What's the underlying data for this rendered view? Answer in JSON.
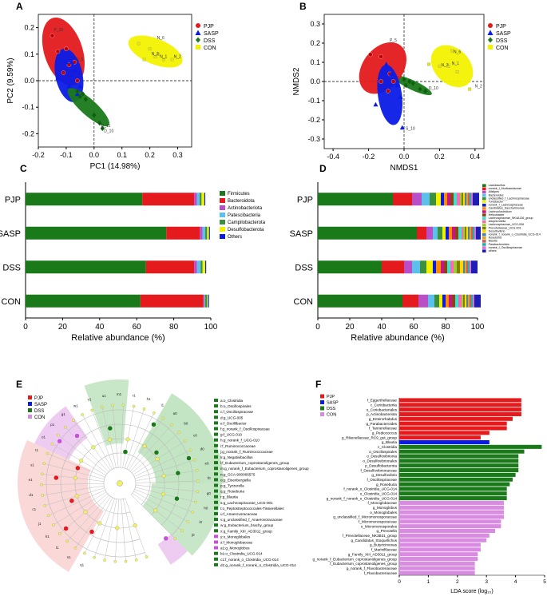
{
  "colors": {
    "PJP": "#e41a1c",
    "SASP": "#0a1be6",
    "DSS": "#1a7a1a",
    "CON": "#f2f200",
    "CONlda": "#d88be0"
  },
  "chart_data": [
    {
      "panel": "A",
      "type": "scatter",
      "title": "",
      "xlabel": "PC1 (14.98%)",
      "ylabel": "PC2 (9.59%)",
      "xlim": [
        -0.2,
        0.35
      ],
      "ylim": [
        -0.25,
        0.25
      ],
      "xticks": [
        "-0.2",
        "-0.1",
        "0.0",
        "0.1",
        "0.2",
        "0.3"
      ],
      "yticks": [
        "-0.2",
        "-0.1",
        "0.0",
        "0.1",
        "0.2"
      ],
      "legend": [
        "PJP",
        "SASP",
        "DSS",
        "CON"
      ],
      "labels": [
        {
          "t": "P_10",
          "x": -0.15,
          "y": 0.18
        },
        {
          "t": "S_5",
          "x": -0.07,
          "y": 0.07
        },
        {
          "t": "D_11",
          "x": 0.02,
          "y": -0.18
        },
        {
          "t": "D_10",
          "x": 0.03,
          "y": -0.2
        },
        {
          "t": "N_6",
          "x": 0.22,
          "y": 0.15
        },
        {
          "t": "N_3",
          "x": 0.2,
          "y": 0.09
        },
        {
          "t": "N_1",
          "x": 0.23,
          "y": 0.08
        },
        {
          "t": "N_2",
          "x": 0.28,
          "y": 0.08
        }
      ],
      "series": [
        {
          "name": "PJP",
          "points": [
            [
              -0.15,
              0.17
            ],
            [
              -0.13,
              0.11
            ],
            [
              -0.1,
              0.12
            ],
            [
              -0.09,
              0.06
            ],
            [
              -0.11,
              0.03
            ],
            [
              -0.07,
              0.07
            ],
            [
              -0.06,
              0.0
            ]
          ]
        },
        {
          "name": "SASP",
          "points": [
            [
              -0.13,
              0.01
            ],
            [
              -0.1,
              0.07
            ],
            [
              -0.08,
              0.07
            ],
            [
              -0.07,
              0.04
            ],
            [
              -0.09,
              -0.02
            ],
            [
              -0.06,
              -0.05
            ],
            [
              -0.05,
              -0.02
            ]
          ]
        },
        {
          "name": "DSS",
          "points": [
            [
              -0.06,
              -0.04
            ],
            [
              -0.04,
              -0.05
            ],
            [
              -0.03,
              -0.07
            ],
            [
              0.0,
              -0.13
            ],
            [
              0.02,
              -0.16
            ],
            [
              0.03,
              -0.18
            ],
            [
              -0.05,
              -0.06
            ]
          ]
        },
        {
          "name": "CON",
          "points": [
            [
              0.16,
              0.14
            ],
            [
              0.2,
              0.12
            ],
            [
              0.22,
              0.09
            ],
            [
              0.23,
              0.1
            ],
            [
              0.25,
              0.08
            ],
            [
              0.28,
              0.08
            ],
            [
              0.18,
              0.08
            ]
          ]
        }
      ]
    },
    {
      "panel": "B",
      "type": "scatter",
      "title": "",
      "xlabel": "NMDS1",
      "ylabel": "NMDS2",
      "xlim": [
        -0.45,
        0.45
      ],
      "ylim": [
        -0.35,
        0.35
      ],
      "xticks": [
        "-0.4",
        "-0.2",
        "0.0",
        "0.2",
        "0.4"
      ],
      "yticks": [
        "-0.3",
        "-0.2",
        "-0.1",
        "0.0",
        "0.1",
        "0.2",
        "0.3"
      ],
      "legend": [
        "PJP",
        "SASP",
        "DSS",
        "CON"
      ],
      "labels": [
        {
          "t": "P_5",
          "x": -0.09,
          "y": 0.2
        },
        {
          "t": "N_6",
          "x": 0.27,
          "y": 0.14
        },
        {
          "t": "N_3",
          "x": 0.2,
          "y": 0.07
        },
        {
          "t": "N_1",
          "x": 0.26,
          "y": 0.08
        },
        {
          "t": "N_2",
          "x": 0.39,
          "y": -0.04
        },
        {
          "t": "D_10",
          "x": 0.13,
          "y": -0.05
        },
        {
          "t": "S_10",
          "x": 0.0,
          "y": -0.26
        }
      ],
      "series": [
        {
          "name": "PJP",
          "points": [
            [
              -0.19,
              0.14
            ],
            [
              -0.13,
              0.13
            ],
            [
              -0.08,
              0.04
            ],
            [
              -0.06,
              0.0
            ],
            [
              -0.13,
              0.0
            ],
            [
              -0.09,
              -0.05
            ]
          ]
        },
        {
          "name": "SASP",
          "points": [
            [
              -0.1,
              0.09
            ],
            [
              -0.07,
              0.04
            ],
            [
              -0.04,
              -0.02
            ],
            [
              -0.16,
              -0.12
            ],
            [
              -0.01,
              -0.24
            ],
            [
              -0.02,
              -0.08
            ]
          ]
        },
        {
          "name": "DSS",
          "points": [
            [
              0.0,
              0.01
            ],
            [
              0.03,
              0.0
            ],
            [
              0.05,
              -0.01
            ],
            [
              0.09,
              -0.04
            ],
            [
              0.12,
              -0.05
            ],
            [
              0.01,
              -0.02
            ]
          ]
        },
        {
          "name": "CON",
          "points": [
            [
              0.14,
              0.09
            ],
            [
              0.2,
              0.08
            ],
            [
              0.25,
              0.08
            ],
            [
              0.27,
              0.16
            ],
            [
              0.3,
              0.05
            ],
            [
              0.37,
              -0.04
            ]
          ]
        }
      ]
    },
    {
      "panel": "C",
      "type": "bar",
      "orientation": "horizontal",
      "stacked": true,
      "xlabel": "Relative abundance (%)",
      "xlim": [
        0,
        100
      ],
      "xticks": [
        "0",
        "20",
        "40",
        "60",
        "80",
        "100"
      ],
      "categories": [
        "PJP",
        "SASP",
        "DSS",
        "CON"
      ],
      "series": [
        {
          "name": "Firmicutes",
          "color": "#1a7a1a",
          "values": [
            63,
            76,
            65,
            62
          ]
        },
        {
          "name": "Bacteroidota",
          "color": "#e41a1c",
          "values": [
            28,
            18,
            26,
            34
          ]
        },
        {
          "name": "Actinobacteriota",
          "color": "#b84fc7",
          "values": [
            1.5,
            1.5,
            1.5,
            0.5
          ]
        },
        {
          "name": "Patescibacteria",
          "color": "#5bc0eb",
          "values": [
            1.5,
            1.5,
            2,
            0.5
          ]
        },
        {
          "name": "Campilobacterota",
          "color": "#3c8f3c",
          "values": [
            1,
            1,
            1,
            1
          ]
        },
        {
          "name": "Desulfobacterota",
          "color": "#f2f200",
          "values": [
            1.5,
            1,
            1.5,
            0.5
          ]
        },
        {
          "name": "Others",
          "color": "#0a1be6",
          "values": [
            0.5,
            0.5,
            0.5,
            0.5
          ]
        }
      ]
    },
    {
      "panel": "D",
      "type": "bar",
      "orientation": "horizontal",
      "stacked": true,
      "xlabel": "Relative abundance (%)",
      "xlim": [
        0,
        100
      ],
      "xticks": [
        "0",
        "20",
        "40",
        "60",
        "80",
        "100"
      ],
      "categories": [
        "PJP",
        "SASP",
        "DSS",
        "CON"
      ],
      "series": [
        {
          "name": "Lactobacillus",
          "color": "#1a7a1a",
          "values": [
            47,
            62,
            40,
            53
          ]
        },
        {
          "name": "norank_f_Muribaculaceae",
          "color": "#e41a1c",
          "values": [
            12,
            6,
            14,
            10
          ]
        },
        {
          "name": "Alistipes",
          "color": "#b84fc7",
          "values": [
            6,
            4,
            5,
            6
          ]
        },
        {
          "name": "Bacteroides",
          "color": "#5bc0eb",
          "values": [
            5,
            3,
            5,
            4
          ]
        },
        {
          "name": "unclassified_f_Lachnospiraceae",
          "color": "#3c8f3c",
          "values": [
            4,
            3,
            4,
            3
          ]
        },
        {
          "name": "Turicibacter",
          "color": "#f2f200",
          "values": [
            3,
            2,
            4,
            2
          ]
        },
        {
          "name": "norank_f_Lachnospiraceae",
          "color": "#0a1be6",
          "values": [
            2,
            2,
            2,
            2
          ]
        },
        {
          "name": "Candidatus_Saccharimonas",
          "color": "#ff8c00",
          "values": [
            2,
            2,
            3,
            2
          ]
        },
        {
          "name": "Lachnoclostridium",
          "color": "#c71585",
          "values": [
            2,
            2,
            2,
            2
          ]
        },
        {
          "name": "Helicobacter",
          "color": "#8b4513",
          "values": [
            2,
            2,
            2,
            2
          ]
        },
        {
          "name": "Lachnospiraceae_NK4A136_group",
          "color": "#40e0d0",
          "values": [
            2,
            2,
            2,
            2
          ]
        },
        {
          "name": "Alloprevotella",
          "color": "#ff69b4",
          "values": [
            2,
            1,
            2,
            2
          ]
        },
        {
          "name": "Lachnospiraceae_UCG-006",
          "color": "#9acd32",
          "values": [
            1,
            1,
            2,
            1
          ]
        },
        {
          "name": "Prevotellaceae_UCG-001",
          "color": "#808000",
          "values": [
            1,
            1,
            2,
            1
          ]
        },
        {
          "name": "Desulfovibrio",
          "color": "#ffd700",
          "values": [
            1,
            1,
            2,
            1
          ]
        },
        {
          "name": "norank_f_norank_o_Clostridia_UCG-014",
          "color": "#4682b4",
          "values": [
            1,
            1,
            1,
            1
          ]
        },
        {
          "name": "Roseburia",
          "color": "#daa520",
          "values": [
            1,
            1,
            1,
            1
          ]
        },
        {
          "name": "Blautia",
          "color": "#cd5c5c",
          "values": [
            1,
            1,
            1,
            1
          ]
        },
        {
          "name": "Parabacteroides",
          "color": "#20b2aa",
          "values": [
            1,
            1,
            1,
            1
          ]
        },
        {
          "name": "norank_f_Oscillospiraceae",
          "color": "#da70d6",
          "values": [
            1,
            1,
            1,
            1
          ]
        },
        {
          "name": "others",
          "color": "#1e1eb4",
          "values": [
            4,
            3,
            4,
            4
          ]
        }
      ]
    },
    {
      "panel": "E",
      "type": "cladogram",
      "legend": [
        "PJP",
        "SASP",
        "DSS",
        "CON"
      ],
      "node_tags": [
        "q1",
        "n1",
        "l1",
        "k1",
        "j1",
        "c1",
        "d1",
        "e1",
        "s1",
        "t1",
        "o1",
        "p1",
        "g1",
        "w1",
        "v1",
        "u1",
        "m1",
        "r1",
        "h1",
        "i1",
        "a0",
        "b0",
        "c0",
        "d0",
        "e0",
        "f0",
        "g0",
        "h0",
        "i0",
        "j0"
      ],
      "biomarkers": [
        "a:o_Clostridia",
        "b:o_Oscillospirales",
        "c:f_Oscillospiraceae",
        "d:g_UCG-005",
        "e:f_Oscillibacter",
        "f:g_norank_f_Oscillospiraceae",
        "g:f_UCG-010",
        "h:g_norank_f_UCG-010",
        "i:f_Ruminococcaceae",
        "j:g_norank_f_Ruminococcaceae",
        "k:g_Negativibacillus",
        "l:f_Eubacterium_coprostanoligenes_group",
        "m:g_norank_f_Eubacterium_coprostanoligenes_group",
        "n:g_GCA-900066575",
        "o:g_Eisenbergiella",
        "p:g_Tyzzerella",
        "q:g_Roseburia",
        "r:g_Blautia",
        "s:g_Lachnospiraceae_UCG-001",
        "t:o_Peptostreptococcales-Tissierellales",
        "u:f_Anaerovoracaceae",
        "v:g_unclassified_f_Anaerovoracaceae",
        "w:g_Eubacterium_brachy_group",
        "x:g_Family_XIII_AD3011_group",
        "y:o_Monoglobales",
        "z:f_Monoglobaceae",
        "a1:g_Monoglobus",
        "b1:o_Clostridia_UCG-014",
        "c1:f_norank_o_Clostridia_UCG-014",
        "d1:g_norank_f_norank_o_Clostridia_UCG-014"
      ]
    },
    {
      "panel": "F",
      "type": "bar",
      "orientation": "horizontal",
      "xlabel": "LDA score (log₁₀)",
      "xlim": [
        0,
        5
      ],
      "xticks": [
        "0",
        "1",
        "2",
        "3",
        "4",
        "5"
      ],
      "legend": [
        "PJP",
        "SASP",
        "DSS",
        "CON"
      ],
      "categories": [
        "f_Eggerthellaceae",
        "c_Coriobacteriia",
        "o_Coriobacteriales",
        "p_Actinobacteriota",
        "g_Enterorhabdus",
        "g_Parabacteroides",
        "f_Tannerellaceae",
        "g_Pediococcus",
        "g_Rikenellaceae_RC9_gut_group",
        "g_Blautia",
        "c_Clostridia",
        "o_Oscillospirales",
        "o_Desulfovibrionia",
        "o_Desulfovibrionales",
        "p_Desulfobacterota",
        "f_Desulfovibrionaceae",
        "g_Desulfovibrio",
        "f_Oscillospiraceae",
        "g_Roseburia",
        "f_norank_o_Clostridia_UCG-014",
        "o_Clostridia_UCG-014",
        "g_norank_f_norank_o_Clostridia_UCG-014",
        "f_Monoglobaceae",
        "g_Monoglobus",
        "o_Monoglobales",
        "g_unclassified_f_Micromonosporaceae",
        "f_Micromonosporaceae",
        "o_Micromonosporales",
        "g_Prevotella",
        "f_Prevotellaceae_NK3B31_group",
        "g_Candidatus_Stoquefichus",
        "g_Butyricimonas",
        "f_Marinifilaceae",
        "g_Family_XIII_AD3011_group",
        "g_norank_f_Eubacterium_coprostanoligenes_group",
        "f_Eubacterium_coprostanoligenes_group",
        "g_norank_f_Flavobacteriaceae",
        "f_Flavobacteriaceae"
      ],
      "values": [
        4.2,
        4.2,
        4.2,
        4.2,
        3.9,
        3.7,
        3.7,
        3.1,
        2.8,
        3.1,
        4.9,
        4.3,
        4.1,
        4.1,
        4.1,
        4.1,
        4.0,
        3.9,
        3.8,
        3.7,
        3.7,
        3.7,
        3.6,
        3.6,
        3.6,
        3.6,
        3.5,
        3.5,
        3.3,
        3.1,
        3.0,
        2.8,
        2.8,
        2.7,
        2.7,
        2.6,
        2.6,
        2.6
      ],
      "groups": [
        "PJP",
        "PJP",
        "PJP",
        "PJP",
        "PJP",
        "PJP",
        "PJP",
        "PJP",
        "PJP",
        "SASP",
        "DSS",
        "DSS",
        "DSS",
        "DSS",
        "DSS",
        "DSS",
        "DSS",
        "DSS",
        "DSS",
        "DSS",
        "DSS",
        "DSS",
        "CON",
        "CON",
        "CON",
        "CON",
        "CON",
        "CON",
        "CON",
        "CON",
        "CON",
        "CON",
        "CON",
        "CON",
        "CON",
        "CON",
        "CON",
        "CON"
      ]
    }
  ]
}
